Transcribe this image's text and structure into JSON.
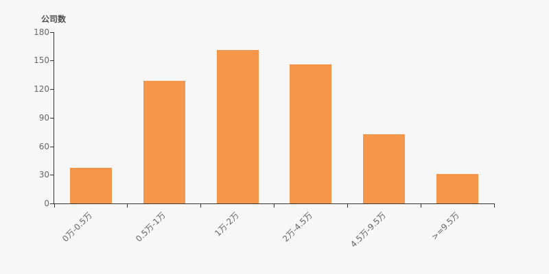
{
  "chart_data": {
    "type": "bar",
    "title": "",
    "ylabel": "公司数",
    "xlabel": "",
    "categories": [
      "0万-0.5万",
      "0.5万-1万",
      "1万-2万",
      "2万-4.5万",
      "4.5万-9.5万",
      ">=9.5万"
    ],
    "values": [
      38,
      129,
      161,
      146,
      73,
      31
    ],
    "ylim": [
      0,
      180
    ],
    "yticks": [
      0,
      30,
      60,
      90,
      120,
      150,
      180
    ],
    "grid": false,
    "legend_position": "none",
    "x_label_rotation_deg": 45,
    "colors": {
      "bar": "#f6964a",
      "background": "#f7f7f7",
      "axis_line": "#333333",
      "tick_label": "#666666",
      "axis_title": "#4d4d4d"
    }
  }
}
